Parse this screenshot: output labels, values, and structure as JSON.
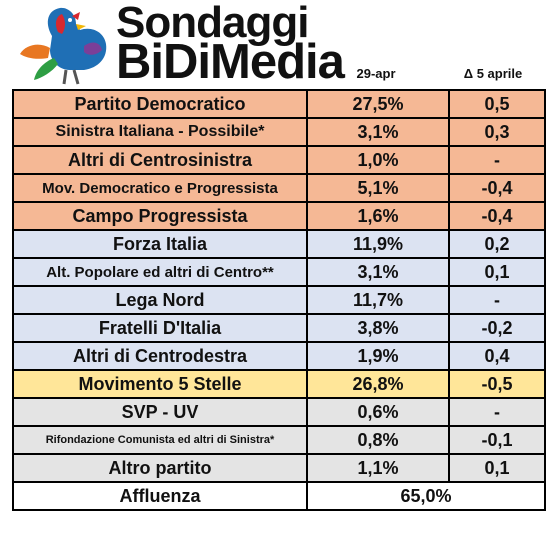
{
  "brand": {
    "line1": "Sondaggi",
    "line2": "BiDiMedia"
  },
  "columns": {
    "date": "29-apr",
    "delta": "Δ 5 aprile"
  },
  "colors": {
    "centrosinistra": "#F5B895",
    "centrodestra": "#DCE3F2",
    "m5s": "#FFE699",
    "altri": "#E4E4E4",
    "affluenza": "#FFFFFF"
  },
  "chart_data": {
    "type": "table",
    "columns": [
      "",
      "29-apr",
      "Δ 5 aprile"
    ],
    "rows": [
      {
        "party": "Partito Democratico",
        "value": "27,5%",
        "delta": "0,5",
        "group": "centrosinistra"
      },
      {
        "party": "Sinistra Italiana - Possibile*",
        "value": "3,1%",
        "delta": "0,3",
        "group": "centrosinistra"
      },
      {
        "party": "Altri di Centrosinistra",
        "value": "1,0%",
        "delta": "-",
        "group": "centrosinistra"
      },
      {
        "party": "Mov. Democratico e Progressista",
        "value": "5,1%",
        "delta": "-0,4",
        "group": "centrosinistra"
      },
      {
        "party": "Campo Progressista",
        "value": "1,6%",
        "delta": "-0,4",
        "group": "centrosinistra"
      },
      {
        "party": "Forza Italia",
        "value": "11,9%",
        "delta": "0,2",
        "group": "centrodestra"
      },
      {
        "party": "Alt. Popolare ed altri di Centro**",
        "value": "3,1%",
        "delta": "0,1",
        "group": "centrodestra"
      },
      {
        "party": "Lega Nord",
        "value": "11,7%",
        "delta": "-",
        "group": "centrodestra"
      },
      {
        "party": "Fratelli D'Italia",
        "value": "3,8%",
        "delta": "-0,2",
        "group": "centrodestra"
      },
      {
        "party": "Altri di Centrodestra",
        "value": "1,9%",
        "delta": "0,4",
        "group": "centrodestra"
      },
      {
        "party": "Movimento 5 Stelle",
        "value": "26,8%",
        "delta": "-0,5",
        "group": "m5s"
      },
      {
        "party": "SVP - UV",
        "value": "0,6%",
        "delta": "-",
        "group": "altri"
      },
      {
        "party": "Rifondazione Comunista ed altri di Sinistra*",
        "value": "0,8%",
        "delta": "-0,1",
        "group": "altri"
      },
      {
        "party": "Altro partito",
        "value": "1,1%",
        "delta": "0,1",
        "group": "altri"
      }
    ],
    "turnout": {
      "label": "Affluenza",
      "value": "65,0%"
    }
  }
}
